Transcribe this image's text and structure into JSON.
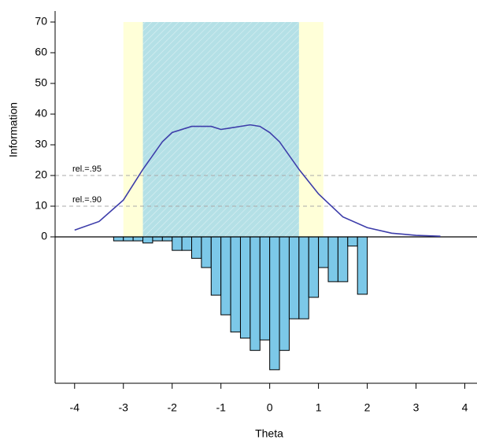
{
  "chart_data": {
    "type": "information-histogram",
    "x_label": "Theta",
    "y_label": "Information",
    "xlim": [
      -4.4,
      4.25
    ],
    "ylim": [
      -47.7,
      70
    ],
    "xticks": [
      -4,
      -3,
      -2,
      -1,
      0,
      1,
      2,
      3,
      4
    ],
    "yticks": [
      0,
      10,
      20,
      30,
      40,
      50,
      60,
      70
    ],
    "bands": [
      {
        "x0": -3.0,
        "x1": 1.1,
        "color": "#ffffd8"
      },
      {
        "x0": -2.6,
        "x1": 0.6,
        "color": "#b4e0e6"
      }
    ],
    "hlines": [
      {
        "value": 20,
        "label": "rel.=.95"
      },
      {
        "value": 10,
        "label": "rel.=.90"
      }
    ],
    "curve": {
      "color": "#3d3daa",
      "x": [
        -4,
        -3.5,
        -3,
        -2.6,
        -2.2,
        -2,
        -1.6,
        -1.2,
        -1,
        -0.8,
        -0.4,
        -0.2,
        0,
        0.2,
        0.6,
        1,
        1.5,
        2,
        2.5,
        3,
        3.5
      ],
      "values": [
        2.2,
        5,
        12,
        22,
        31,
        34,
        36,
        36,
        35,
        35.5,
        36.5,
        36,
        34,
        31,
        22,
        14,
        6.5,
        3,
        1.2,
        0.5,
        0.2
      ]
    },
    "histogram": {
      "color": "#7cc8e8",
      "bins": [
        -3.2,
        -3.0,
        -2.8,
        -2.6,
        -2.4,
        -2.2,
        -2.0,
        -1.8,
        -1.6,
        -1.4,
        -1.2,
        -1.0,
        -0.8,
        -0.6,
        -0.4,
        -0.2,
        0,
        0.2,
        0.4,
        0.6,
        0.8,
        1.0,
        1.2,
        1.4,
        1.6,
        1.8,
        2.0
      ],
      "values": [
        -1.3,
        -1.3,
        -1.3,
        -2,
        -1.3,
        -1.3,
        -4.4,
        -4.4,
        -7,
        -10,
        -19,
        -25.4,
        -31,
        -33,
        -37,
        -33.6,
        -43.3,
        -37,
        -26.7,
        -26.7,
        -19.7,
        -10,
        -14.6,
        -14.6,
        -3,
        -18.7
      ]
    }
  }
}
